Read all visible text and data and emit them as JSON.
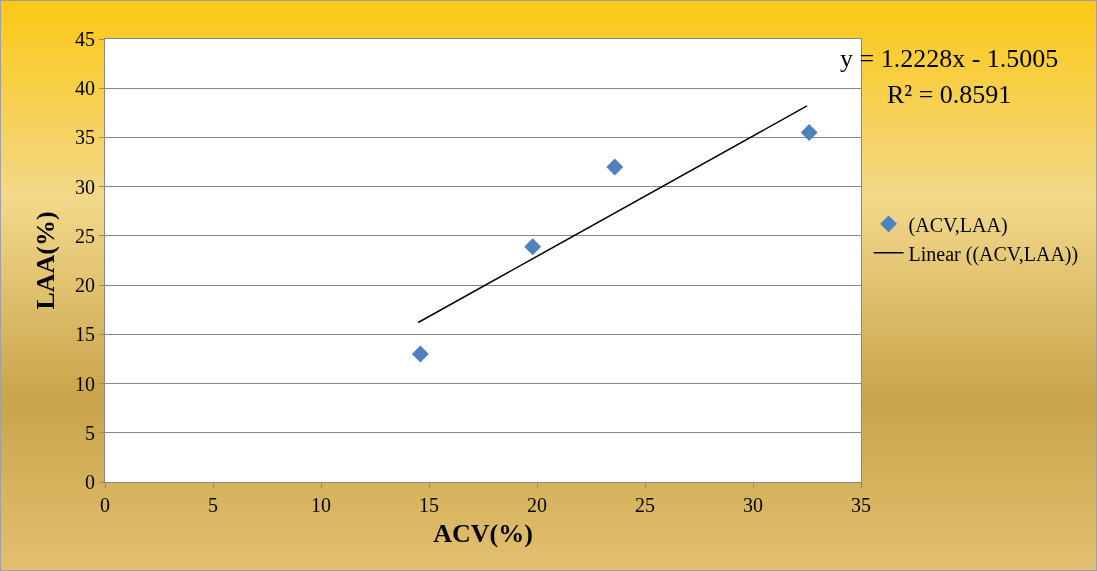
{
  "chart_data": {
    "type": "scatter",
    "xlabel": "ACV(%)",
    "ylabel": "LAA(%)",
    "series": [
      {
        "name": "(ACV,LAA)",
        "color": "#4f81bd",
        "marker": "diamond",
        "x": [
          14.6,
          19.8,
          23.6,
          32.6
        ],
        "values": [
          13.0,
          23.9,
          32.0,
          35.5
        ]
      },
      {
        "name": "Linear ((ACV,LAA))",
        "type": "line",
        "color": "#000000",
        "marker": "none",
        "line_style": "solid",
        "x": [
          14.5,
          32.5
        ],
        "values": [
          16.2,
          38.2
        ]
      }
    ],
    "xlim": [
      0,
      35
    ],
    "xticks": [
      0,
      5,
      10,
      15,
      20,
      25,
      30,
      35
    ],
    "ylim": [
      0,
      45
    ],
    "yticks": [
      0,
      5,
      10,
      15,
      20,
      25,
      30,
      35,
      40,
      45
    ],
    "grid": "y",
    "legend": "right",
    "annotations": [
      "y = 1.2228x - 1.5005",
      "R² = 0.8591"
    ]
  }
}
